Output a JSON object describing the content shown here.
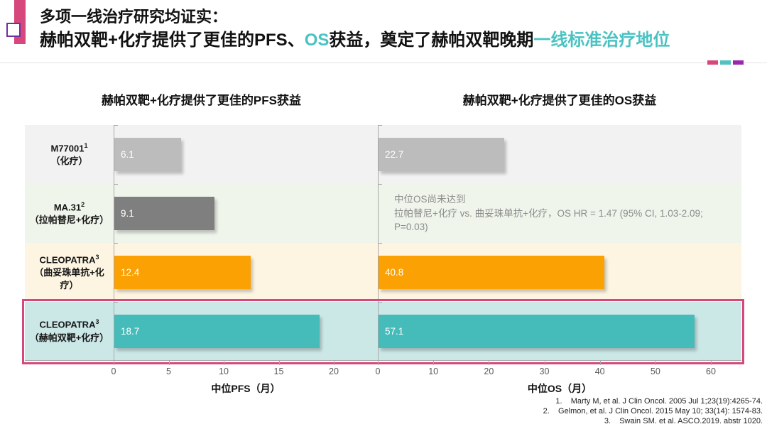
{
  "header": {
    "title_line1": "多项一线治疗研究均证实：",
    "title_line2_parts": {
      "p1": "赫帕双靶+化疗提供了更佳的PFS、",
      "p2": "OS",
      "p3": "获益，奠定了赫帕双靶晚期",
      "p4": "一线标准治疗地位"
    }
  },
  "colors": {
    "accent_pink": "#d6487c",
    "accent_teal": "#4ac2c2",
    "accent_purple": "#9b27af",
    "highlight_border": "#d6487c",
    "axis_line": "#a8a8a8",
    "note_text": "#8c8c8c"
  },
  "rows": [
    {
      "study": "M77001",
      "sup": "1",
      "treatment": "（化疗）",
      "bg_color": "#f2f2f2",
      "bar_color": "#bcbcbc",
      "highlighted": false
    },
    {
      "study": "MA.31",
      "sup": "2",
      "treatment": "（拉帕替尼+化疗）",
      "bg_color": "#eff5eb",
      "bar_color": "#7f7f7f",
      "highlighted": false
    },
    {
      "study": "CLEOPATRA",
      "sup": "3",
      "treatment": "（曲妥珠单抗+化疗）",
      "bg_color": "#fdf5e2",
      "bar_color": "#fba104",
      "highlighted": false
    },
    {
      "study": "CLEOPATRA",
      "sup": "3",
      "treatment": "（赫帕双靶+化疗）",
      "bg_color": "#cbe8e7",
      "bar_color": "#45bcb9",
      "highlighted": true
    }
  ],
  "chart_data": [
    {
      "type": "bar",
      "orientation": "horizontal",
      "title": "赫帕双靶+化疗提供了更佳的PFS获益",
      "xlabel": "中位PFS（月）",
      "xlim": [
        0,
        24
      ],
      "ticks": [
        0,
        5,
        10,
        15,
        20
      ],
      "grid": false,
      "categories": [
        "M77001（化疗）",
        "MA.31（拉帕替尼+化疗）",
        "CLEOPATRA（曲妥珠单抗+化疗）",
        "CLEOPATRA（赫帕双靶+化疗）"
      ],
      "values": [
        6.1,
        9.1,
        12.4,
        18.7
      ]
    },
    {
      "type": "bar",
      "orientation": "horizontal",
      "title": "赫帕双靶+化疗提供了更佳的OS获益",
      "xlabel": "中位OS（月）",
      "xlim": [
        0,
        65.5
      ],
      "ticks": [
        0,
        10,
        20,
        30,
        40,
        50,
        60
      ],
      "grid": false,
      "categories": [
        "M77001（化疗）",
        "MA.31（拉帕替尼+化疗）",
        "CLEOPATRA（曲妥珠单抗+化疗）",
        "CLEOPATRA（赫帕双靶+化疗）"
      ],
      "values": [
        22.7,
        null,
        40.8,
        57.1
      ],
      "annotation": {
        "row_index": 1,
        "line1": "中位OS尚未达到",
        "line2": "拉帕替尼+化疗 vs. 曲妥珠单抗+化疗，OS HR =  1.47 (95% CI, 1.03-2.09; P=0.03)"
      }
    }
  ],
  "footnotes": [
    "1.    Marty M, et al. J Clin Oncol. 2005 Jul 1;23(19):4265-74.",
    "2.    Gelmon, et al. J Clin Oncol. 2015 May 10; 33(14): 1574-83.",
    "3.    Swain SM. et al. ASCO.2019. abstr 1020."
  ]
}
